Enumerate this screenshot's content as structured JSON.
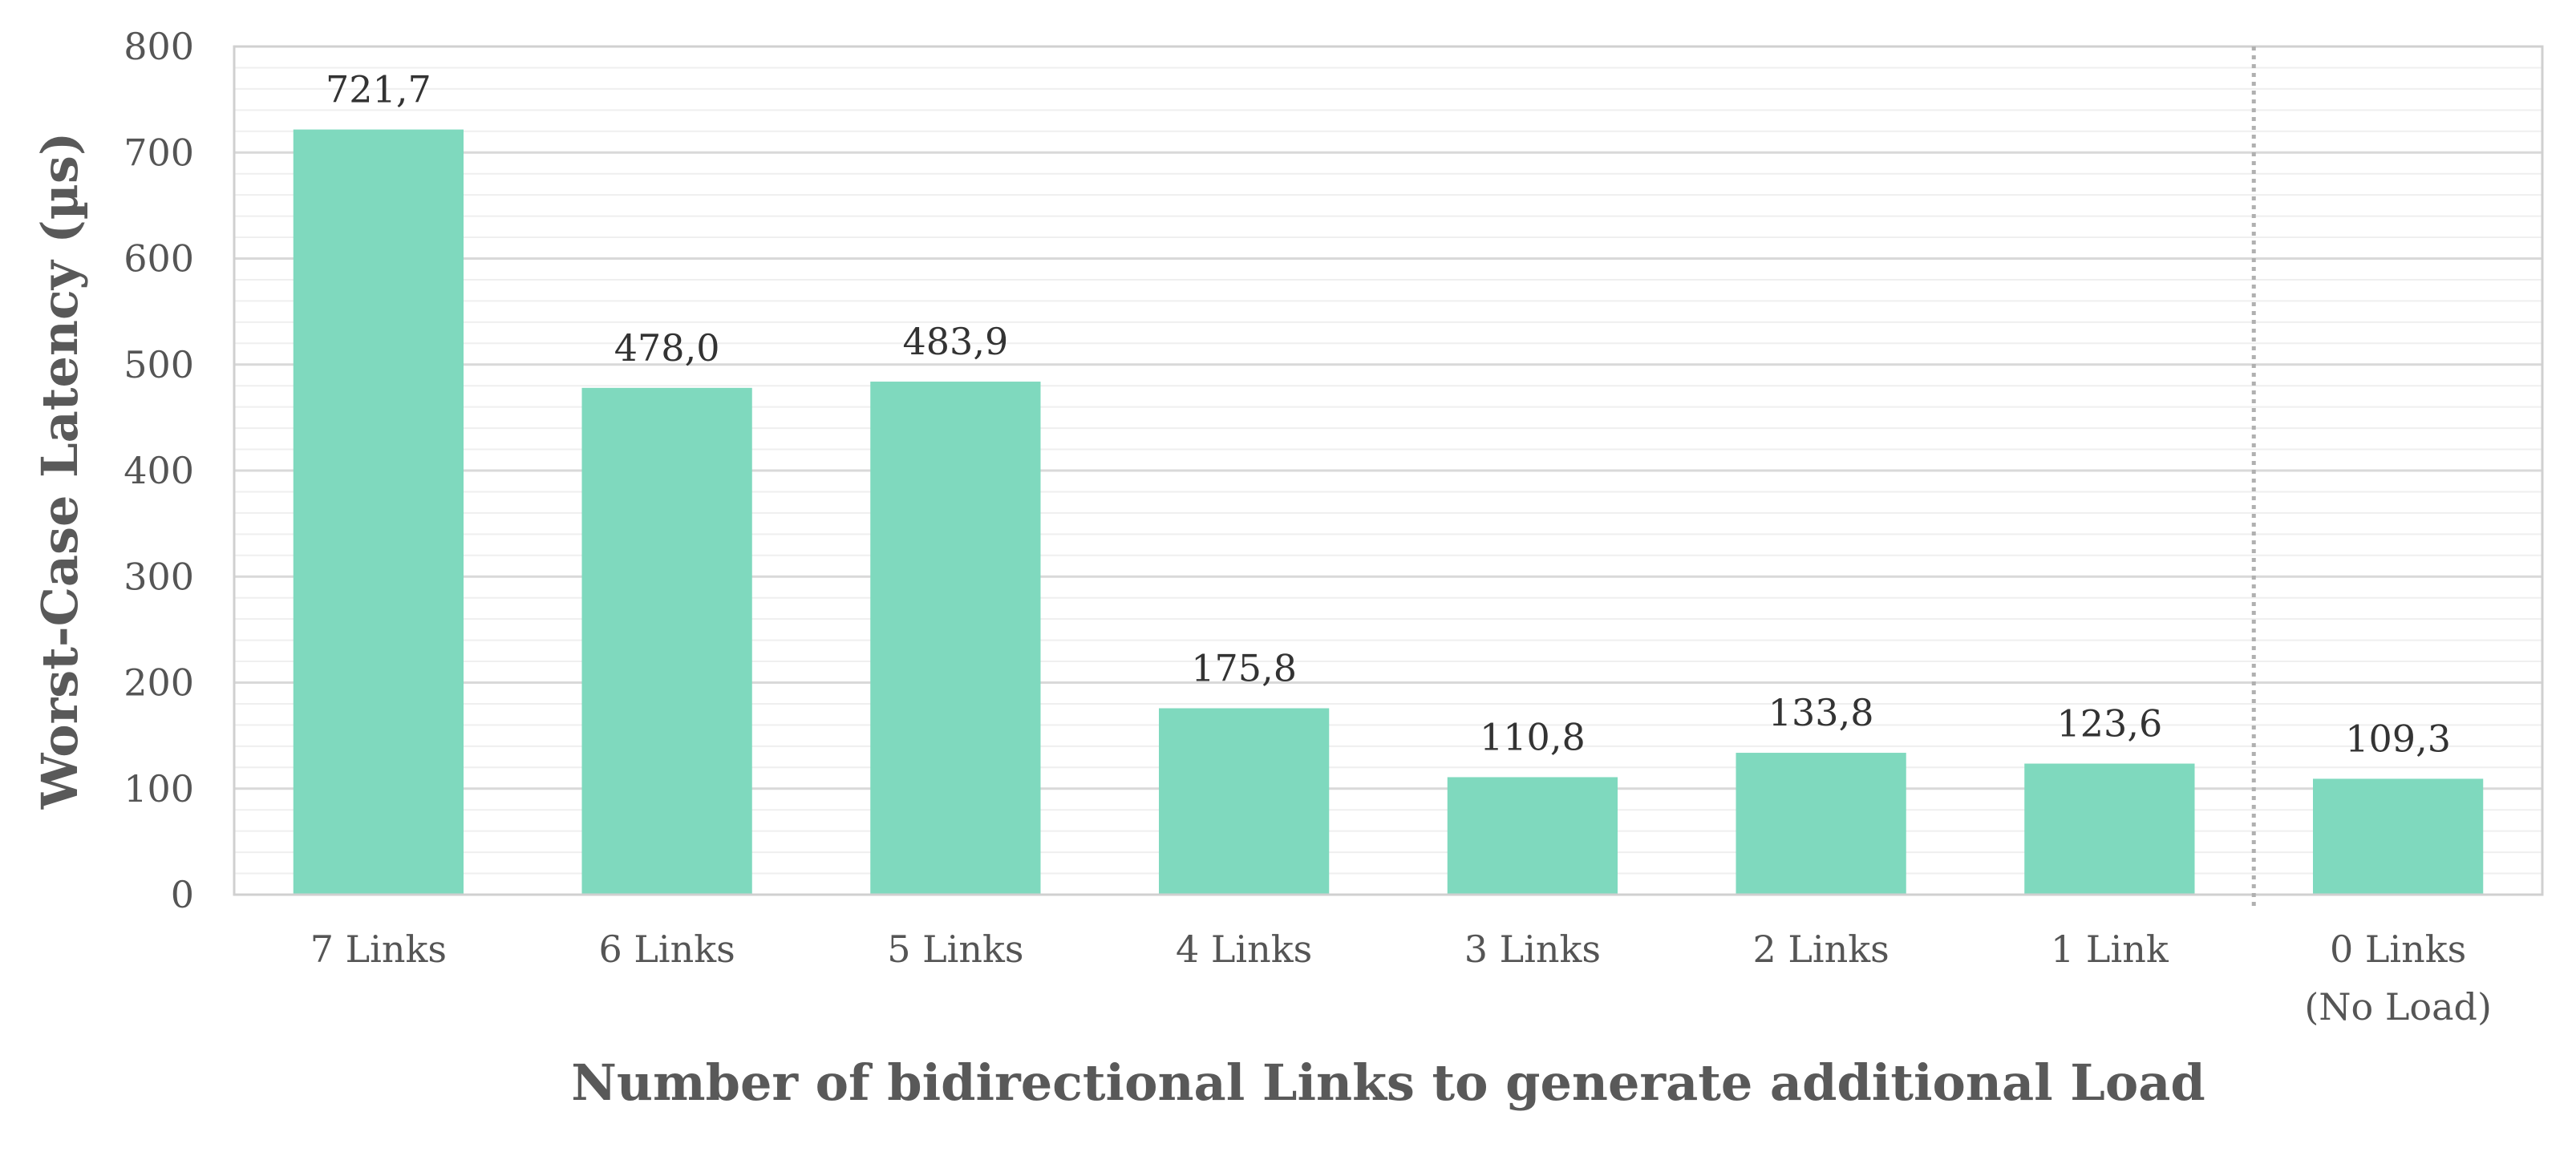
{
  "chart_data": {
    "type": "bar",
    "categories": [
      [
        "7 Links"
      ],
      [
        "6 Links"
      ],
      [
        "5 Links"
      ],
      [
        "4 Links"
      ],
      [
        "3 Links"
      ],
      [
        "2 Links"
      ],
      [
        "1 Link"
      ],
      [
        "0 Links",
        "(No Load)"
      ]
    ],
    "values": [
      721.7,
      478.0,
      483.9,
      175.8,
      110.8,
      133.8,
      123.6,
      109.3
    ],
    "data_labels": [
      "721,7",
      "478,0",
      "483,9",
      "175,8",
      "110,8",
      "133,8",
      "123,6",
      "109,3"
    ],
    "title": "",
    "xlabel": "Number of bidirectional Links to generate additional Load",
    "ylabel": "Worst-Case Latency (µs)",
    "ylim": [
      0,
      800
    ],
    "yticks": [
      0,
      100,
      200,
      300,
      400,
      500,
      600,
      700,
      800
    ],
    "minor_tick_step": 20,
    "grid": true,
    "separator_before_category_index": 7,
    "legend": "none",
    "colors": {
      "bar": "#7fd9be",
      "major_grid": "#d9d9d9",
      "minor_grid": "#efefef",
      "frame": "#d0d0d0",
      "separator": "#b0b0b0"
    }
  }
}
